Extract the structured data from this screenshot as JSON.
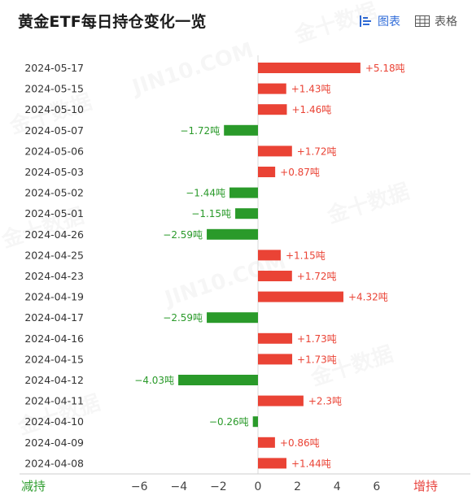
{
  "header": {
    "title": "黄金ETF每日持仓变化一览",
    "chart_view_label": "图表",
    "table_view_label": "表格"
  },
  "legend": {
    "decrease_label": "减持",
    "increase_label": "增持"
  },
  "colors": {
    "increase": "#ea4335",
    "decrease": "#2a9a2a",
    "accent": "#2f6bd8"
  },
  "chart_data": {
    "type": "bar",
    "orientation": "horizontal",
    "unit": "吨",
    "categories": [
      "2024-05-17",
      "2024-05-15",
      "2024-05-10",
      "2024-05-07",
      "2024-05-06",
      "2024-05-03",
      "2024-05-02",
      "2024-05-01",
      "2024-04-26",
      "2024-04-25",
      "2024-04-23",
      "2024-04-19",
      "2024-04-17",
      "2024-04-16",
      "2024-04-15",
      "2024-04-12",
      "2024-04-11",
      "2024-04-10",
      "2024-04-09",
      "2024-04-08"
    ],
    "values": [
      5.18,
      1.43,
      1.46,
      -1.72,
      1.72,
      0.87,
      -1.44,
      -1.15,
      -2.59,
      1.15,
      1.72,
      4.32,
      -2.59,
      1.73,
      1.73,
      -4.03,
      2.3,
      -0.26,
      0.86,
      1.44
    ],
    "labels": [
      "+5.18吨",
      "+1.43吨",
      "+1.46吨",
      "−1.72吨",
      "+1.72吨",
      "+0.87吨",
      "−1.44吨",
      "−1.15吨",
      "−2.59吨",
      "+1.15吨",
      "+1.72吨",
      "+4.32吨",
      "−2.59吨",
      "+1.73吨",
      "+1.73吨",
      "−4.03吨",
      "+2.3吨",
      "−0.26吨",
      "+0.86吨",
      "+1.44吨"
    ],
    "xticks": [
      "−6",
      "−4",
      "−2",
      "0",
      "2",
      "4",
      "6"
    ],
    "xlim": [
      -6.5,
      6.5
    ],
    "grid": false
  }
}
